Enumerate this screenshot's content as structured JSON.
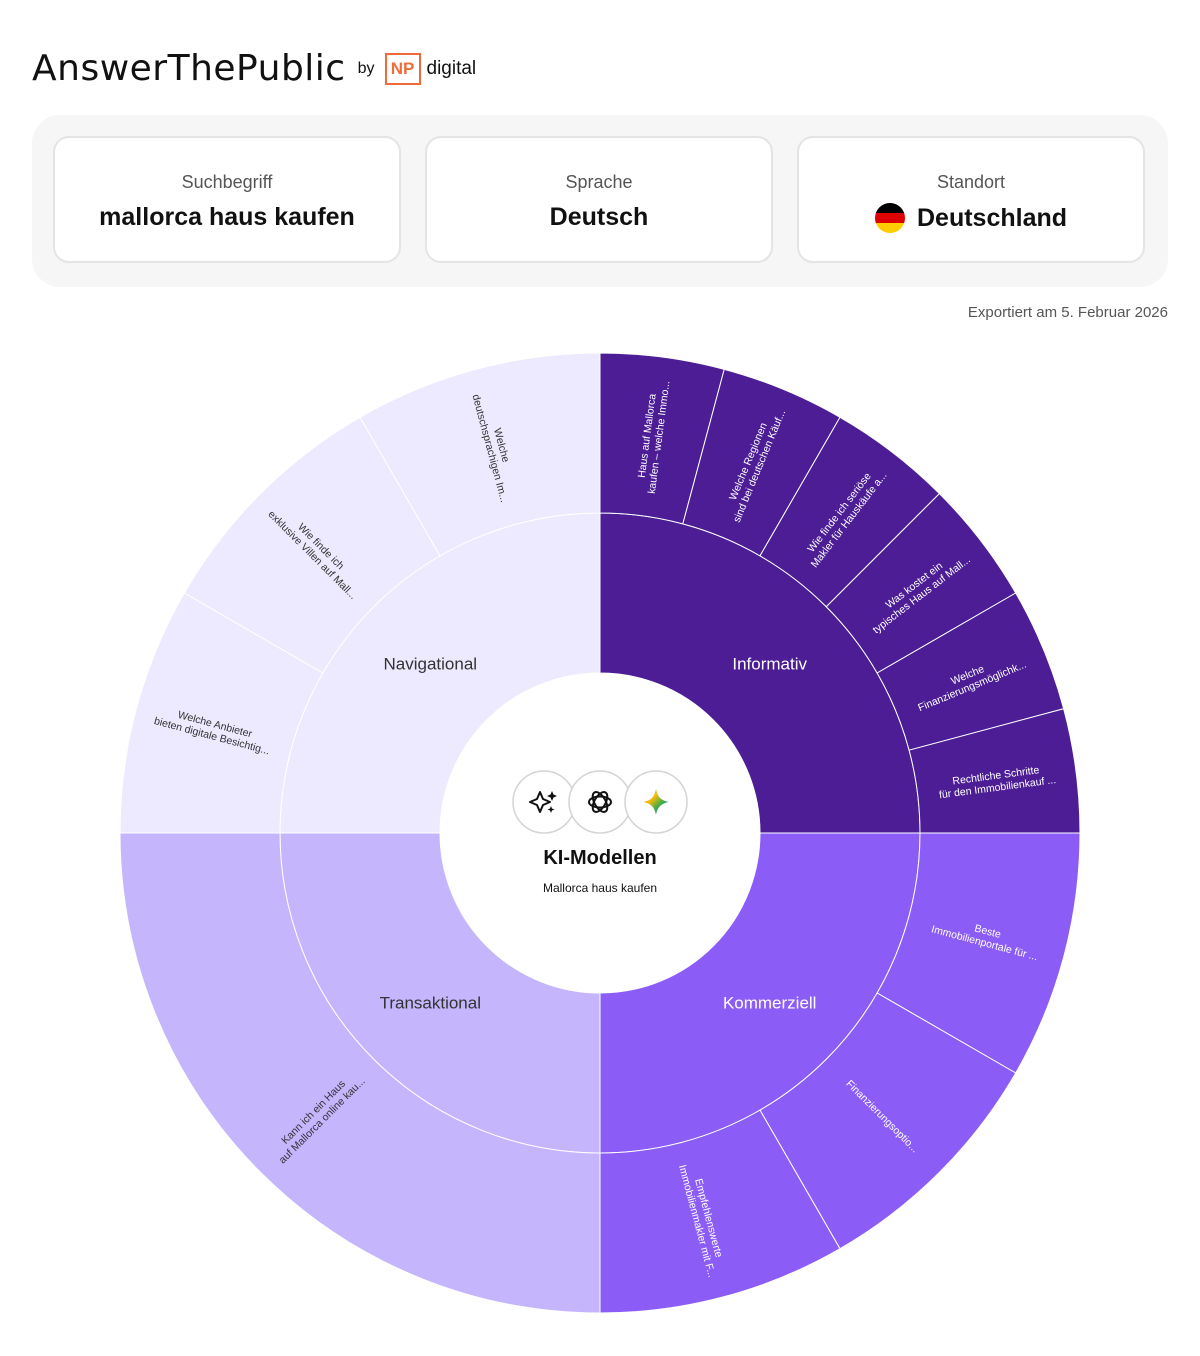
{
  "header": {
    "brand": "AnswerThePublic",
    "by": "by",
    "np": "NP",
    "digital": "digital"
  },
  "cards": {
    "search_term": {
      "label": "Suchbegriff",
      "value": "mallorca haus kaufen"
    },
    "language": {
      "label": "Sprache",
      "value": "Deutsch"
    },
    "location": {
      "label": "Standort",
      "value": "Deutschland",
      "flag_icon": "germany-flag-icon"
    }
  },
  "exported": "Exportiert am 5. Februar 2026",
  "center": {
    "title": "KI-Modellen",
    "subtitle": "Mallorca haus kaufen",
    "model_icons": [
      "sparkle-icon",
      "openai-icon",
      "gemini-icon"
    ]
  },
  "chart_data": {
    "type": "sunburst",
    "categories": [
      {
        "name": "Informativ",
        "color": "#4c1d95",
        "text_color": "#ffffff",
        "children": [
          [
            "Haus auf Mallorca",
            "kaufen – welche Immo..."
          ],
          [
            "Welche Regionen",
            "sind bei deutschen Käuf..."
          ],
          [
            "Wie finde ich seriöse",
            "Makler für Hauskäufe a..."
          ],
          [
            "Was kostet ein",
            "typisches Haus auf Mall..."
          ],
          [
            "Welche",
            "Finanzierungsmöglichk..."
          ],
          [
            "Rechtliche Schritte",
            "für den Immobilienkauf ..."
          ]
        ]
      },
      {
        "name": "Kommerziell",
        "color": "#8b5cf6",
        "text_color": "#ffffff",
        "children": [
          [
            "Beste",
            "Immobilienportale für ..."
          ],
          [
            "Finanzierungsoptio..."
          ],
          [
            "Empfehlenswerte",
            "Immobilienmakler mit F..."
          ]
        ]
      },
      {
        "name": "Transaktional",
        "color": "#c4b5fd",
        "text_color": "#333333",
        "children": [
          [
            "Kann ich ein Haus",
            "auf Mallorca online kau..."
          ]
        ]
      },
      {
        "name": "Navigational",
        "color": "#ede9fe",
        "text_color": "#333333",
        "children": [
          [
            "Welche Anbieter",
            "bieten digitale Besichtig..."
          ],
          [
            "Wie finde ich",
            "exklusive Villen auf Mall..."
          ],
          [
            "Welche",
            "deutschsprachigen Im..."
          ]
        ]
      }
    ]
  }
}
